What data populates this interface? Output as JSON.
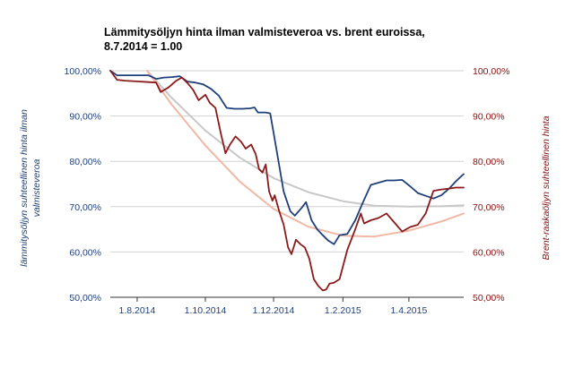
{
  "chart_data": {
    "type": "line",
    "title_line1": "Lämmitysöljyn hinta ilman valmisteveroa vs. brent euroissa,",
    "title_line2": "8.7.2014 = 1.00",
    "ylabel_left": "lämmitysöljyn suhteellinen hinta ilman valmisteveroa",
    "ylabel_left_lines": [
      "lämmitysöljyn suhteellinen hinta ilman",
      "valmisteveroa"
    ],
    "ylabel_right": "Brent-raakaöljyn suhteellinen hinta",
    "ylim_left": [
      50,
      100
    ],
    "ylim_right": [
      50,
      100
    ],
    "yticks_left": [
      "100,00%",
      "90,00%",
      "80,00%",
      "70,00%",
      "60,00%",
      "50,00%"
    ],
    "yticks_right": [
      "100,00%",
      "90,00%",
      "80,00%",
      "70,00%",
      "60,00%",
      "50,00%"
    ],
    "xlim": [
      "2014-07-08",
      "2015-05-20"
    ],
    "xticks": [
      {
        "date": "2014-08-01",
        "label": "1.8.2014"
      },
      {
        "date": "2014-10-01",
        "label": "1.10.2014"
      },
      {
        "date": "2014-12-01",
        "label": "1.12.2014"
      },
      {
        "date": "2015-02-01",
        "label": "1.2.2015"
      },
      {
        "date": "2015-04-01",
        "label": "1.4.2015"
      }
    ],
    "grid": true,
    "series": [
      {
        "axis": "left",
        "color": "#1f3f7a",
        "points": [
          [
            "2014-07-08",
            100.0
          ],
          [
            "2014-07-14",
            99.0
          ],
          [
            "2014-07-21",
            99.0
          ],
          [
            "2014-07-28",
            99.0
          ],
          [
            "2014-08-04",
            99.0
          ],
          [
            "2014-08-11",
            99.0
          ],
          [
            "2014-08-18",
            98.2
          ],
          [
            "2014-08-25",
            98.5
          ],
          [
            "2014-09-01",
            98.6
          ],
          [
            "2014-09-08",
            98.8
          ],
          [
            "2014-09-15",
            97.6
          ],
          [
            "2014-09-22",
            97.4
          ],
          [
            "2014-09-29",
            97.0
          ],
          [
            "2014-10-06",
            96.0
          ],
          [
            "2014-10-13",
            94.5
          ],
          [
            "2014-10-20",
            91.8
          ],
          [
            "2014-10-27",
            91.6
          ],
          [
            "2014-11-03",
            91.6
          ],
          [
            "2014-11-10",
            91.7
          ],
          [
            "2014-11-14",
            91.9
          ],
          [
            "2014-11-17",
            90.8
          ],
          [
            "2014-11-24",
            90.8
          ],
          [
            "2014-11-28",
            90.6
          ],
          [
            "2014-12-04",
            82.0
          ],
          [
            "2014-12-10",
            73.3
          ],
          [
            "2014-12-16",
            69.0
          ],
          [
            "2014-12-20",
            68.0
          ],
          [
            "2014-12-26",
            69.7
          ],
          [
            "2014-12-30",
            71.0
          ],
          [
            "2015-01-04",
            67.0
          ],
          [
            "2015-01-09",
            65.0
          ],
          [
            "2015-01-14",
            63.7
          ],
          [
            "2015-01-19",
            62.5
          ],
          [
            "2015-01-24",
            61.7
          ],
          [
            "2015-01-29",
            63.7
          ],
          [
            "2015-02-05",
            64.0
          ],
          [
            "2015-02-12",
            67.0
          ],
          [
            "2015-02-19",
            71.0
          ],
          [
            "2015-02-26",
            74.8
          ],
          [
            "2015-03-05",
            75.3
          ],
          [
            "2015-03-12",
            75.8
          ],
          [
            "2015-03-19",
            75.8
          ],
          [
            "2015-03-26",
            75.9
          ],
          [
            "2015-04-02",
            74.5
          ],
          [
            "2015-04-09",
            73.0
          ],
          [
            "2015-04-16",
            72.4
          ],
          [
            "2015-04-23",
            71.8
          ],
          [
            "2015-04-30",
            72.5
          ],
          [
            "2015-05-07",
            74.0
          ],
          [
            "2015-05-13",
            75.6
          ],
          [
            "2015-05-20",
            77.2
          ]
        ]
      },
      {
        "axis": "right",
        "color": "#8b1a1a",
        "points": [
          [
            "2014-07-08",
            100.0
          ],
          [
            "2014-07-14",
            98.0
          ],
          [
            "2014-07-21",
            97.8
          ],
          [
            "2014-07-28",
            97.7
          ],
          [
            "2014-08-04",
            97.6
          ],
          [
            "2014-08-11",
            97.5
          ],
          [
            "2014-08-18",
            97.4
          ],
          [
            "2014-08-22",
            95.3
          ],
          [
            "2014-08-29",
            96.3
          ],
          [
            "2014-09-05",
            97.8
          ],
          [
            "2014-09-10",
            98.5
          ],
          [
            "2014-09-15",
            97.3
          ],
          [
            "2014-09-20",
            95.8
          ],
          [
            "2014-09-25",
            93.5
          ],
          [
            "2014-10-01",
            94.7
          ],
          [
            "2014-10-05",
            92.9
          ],
          [
            "2014-10-10",
            91.8
          ],
          [
            "2014-10-15",
            86.0
          ],
          [
            "2014-10-19",
            81.8
          ],
          [
            "2014-10-23",
            83.7
          ],
          [
            "2014-10-28",
            85.5
          ],
          [
            "2014-11-02",
            84.3
          ],
          [
            "2014-11-06",
            82.8
          ],
          [
            "2014-11-11",
            83.7
          ],
          [
            "2014-11-15",
            81.6
          ],
          [
            "2014-11-18",
            78.3
          ],
          [
            "2014-11-21",
            77.5
          ],
          [
            "2014-11-24",
            79.3
          ],
          [
            "2014-11-27",
            73.3
          ],
          [
            "2014-11-30",
            71.3
          ],
          [
            "2014-12-02",
            72.5
          ],
          [
            "2014-12-06",
            69.0
          ],
          [
            "2014-12-10",
            66.0
          ],
          [
            "2014-12-14",
            61.0
          ],
          [
            "2014-12-17",
            59.5
          ],
          [
            "2014-12-21",
            62.7
          ],
          [
            "2014-12-25",
            61.7
          ],
          [
            "2014-12-29",
            61.0
          ],
          [
            "2015-01-02",
            58.5
          ],
          [
            "2015-01-06",
            54.0
          ],
          [
            "2015-01-10",
            52.5
          ],
          [
            "2015-01-14",
            51.5
          ],
          [
            "2015-01-17",
            51.7
          ],
          [
            "2015-01-20",
            53.0
          ],
          [
            "2015-01-24",
            53.2
          ],
          [
            "2015-01-29",
            54.0
          ],
          [
            "2015-02-05",
            60.5
          ],
          [
            "2015-02-12",
            65.0
          ],
          [
            "2015-02-17",
            68.5
          ],
          [
            "2015-02-20",
            66.3
          ],
          [
            "2015-02-26",
            67.0
          ],
          [
            "2015-03-05",
            67.5
          ],
          [
            "2015-03-12",
            68.5
          ],
          [
            "2015-03-19",
            66.5
          ],
          [
            "2015-03-26",
            64.5
          ],
          [
            "2015-04-02",
            65.5
          ],
          [
            "2015-04-09",
            66.0
          ],
          [
            "2015-04-16",
            68.5
          ],
          [
            "2015-04-23",
            73.5
          ],
          [
            "2015-04-30",
            73.8
          ],
          [
            "2015-05-07",
            74.0
          ],
          [
            "2015-05-13",
            74.2
          ],
          [
            "2015-05-20",
            74.2
          ]
        ]
      },
      {
        "axis": "left",
        "style": "trend",
        "color": "#c8c8c8",
        "points": [
          [
            "2014-08-10",
            100.0
          ],
          [
            "2014-09-01",
            94.0
          ],
          [
            "2014-10-01",
            86.8
          ],
          [
            "2014-11-01",
            80.8
          ],
          [
            "2014-12-01",
            76.3
          ],
          [
            "2015-01-01",
            73.2
          ],
          [
            "2015-02-01",
            71.2
          ],
          [
            "2015-03-01",
            70.2
          ],
          [
            "2015-04-01",
            70.0
          ],
          [
            "2015-05-01",
            70.1
          ],
          [
            "2015-05-20",
            70.3
          ]
        ]
      },
      {
        "axis": "right",
        "style": "trend",
        "color": "#f0b8a6",
        "points": [
          [
            "2014-08-10",
            100.0
          ],
          [
            "2014-09-01",
            92.5
          ],
          [
            "2014-10-01",
            83.5
          ],
          [
            "2014-11-01",
            75.5
          ],
          [
            "2014-12-01",
            69.5
          ],
          [
            "2015-01-01",
            65.6
          ],
          [
            "2015-02-01",
            63.6
          ],
          [
            "2015-03-01",
            63.4
          ],
          [
            "2015-04-01",
            64.7
          ],
          [
            "2015-05-01",
            66.8
          ],
          [
            "2015-05-20",
            68.5
          ]
        ]
      }
    ]
  }
}
